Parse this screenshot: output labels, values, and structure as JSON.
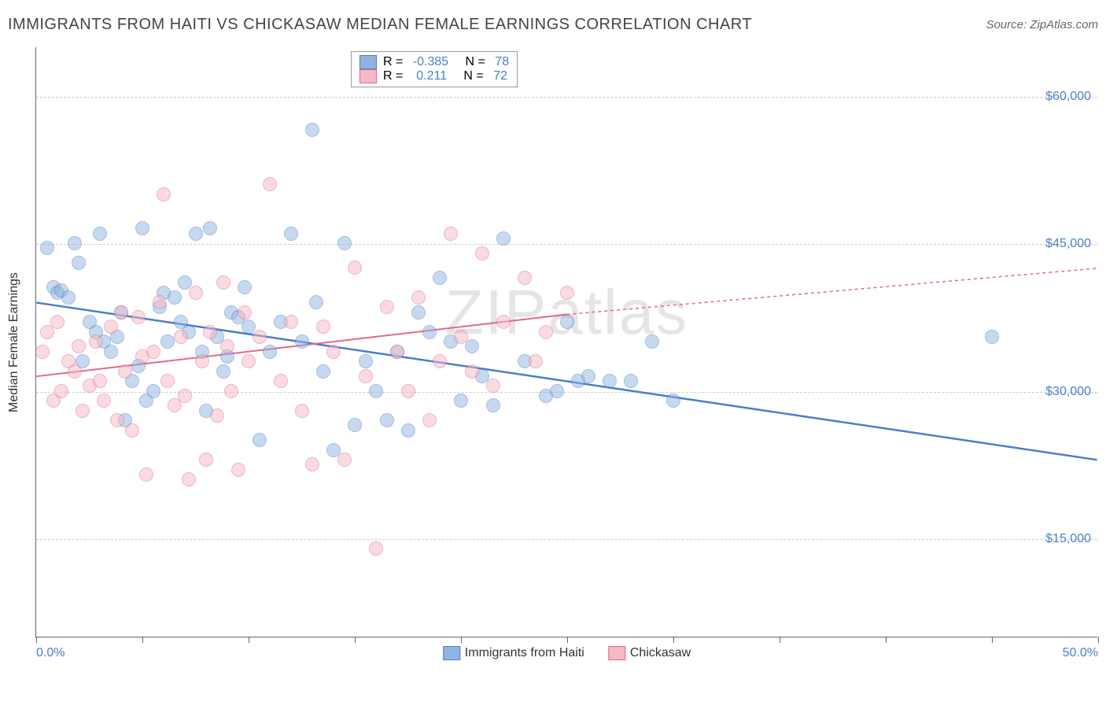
{
  "title": "IMMIGRANTS FROM HAITI VS CHICKASAW MEDIAN FEMALE EARNINGS CORRELATION CHART",
  "source": "Source: ZipAtlas.com",
  "watermark": "ZIPatlas",
  "yaxis_label": "Median Female Earnings",
  "chart": {
    "type": "scatter",
    "xlim": [
      0,
      50
    ],
    "ylim": [
      5000,
      65000
    ],
    "x_ticks": [
      0,
      5,
      10,
      15,
      20,
      25,
      30,
      35,
      40,
      45,
      50
    ],
    "x_tick_labels": {
      "0": "0.0%",
      "50": "50.0%"
    },
    "y_gridlines": [
      15000,
      30000,
      45000,
      60000
    ],
    "y_tick_labels": {
      "15000": "$15,000",
      "30000": "$30,000",
      "45000": "$45,000",
      "60000": "$60,000"
    },
    "grid_color": "#cccccc",
    "background_color": "#ffffff",
    "marker_radius": 9,
    "marker_opacity": 0.5,
    "series": [
      {
        "name": "Immigrants from Haiti",
        "fill_color": "#8fb4e0",
        "stroke_color": "#4a7ec9",
        "R": "-0.385",
        "N": "78",
        "trend": {
          "x1": 0,
          "y1": 39000,
          "x2": 50,
          "y2": 23000,
          "width": 2.5
        },
        "points": [
          [
            0.5,
            44500
          ],
          [
            0.8,
            40500
          ],
          [
            1,
            40000
          ],
          [
            1.2,
            40200
          ],
          [
            1.5,
            39500
          ],
          [
            1.8,
            45000
          ],
          [
            2,
            43000
          ],
          [
            2.2,
            33000
          ],
          [
            2.5,
            37000
          ],
          [
            2.8,
            36000
          ],
          [
            3,
            46000
          ],
          [
            3.2,
            35000
          ],
          [
            3.5,
            34000
          ],
          [
            3.8,
            35500
          ],
          [
            4,
            38000
          ],
          [
            4.2,
            27000
          ],
          [
            4.5,
            31000
          ],
          [
            4.8,
            32500
          ],
          [
            5,
            46500
          ],
          [
            5.2,
            29000
          ],
          [
            5.5,
            30000
          ],
          [
            5.8,
            38500
          ],
          [
            6,
            40000
          ],
          [
            6.2,
            35000
          ],
          [
            6.5,
            39500
          ],
          [
            6.8,
            37000
          ],
          [
            7,
            41000
          ],
          [
            7.2,
            36000
          ],
          [
            7.5,
            46000
          ],
          [
            7.8,
            34000
          ],
          [
            8,
            28000
          ],
          [
            8.2,
            46500
          ],
          [
            8.5,
            35500
          ],
          [
            8.8,
            32000
          ],
          [
            9,
            33500
          ],
          [
            9.2,
            38000
          ],
          [
            9.5,
            37500
          ],
          [
            9.8,
            40500
          ],
          [
            10,
            36500
          ],
          [
            10.5,
            25000
          ],
          [
            11,
            34000
          ],
          [
            11.5,
            37000
          ],
          [
            12,
            46000
          ],
          [
            12.5,
            35000
          ],
          [
            13,
            56500
          ],
          [
            13.2,
            39000
          ],
          [
            13.5,
            32000
          ],
          [
            14,
            24000
          ],
          [
            14.5,
            45000
          ],
          [
            15,
            26500
          ],
          [
            15.5,
            33000
          ],
          [
            16,
            30000
          ],
          [
            16.5,
            27000
          ],
          [
            17,
            34000
          ],
          [
            17.5,
            26000
          ],
          [
            18,
            38000
          ],
          [
            18.5,
            36000
          ],
          [
            19,
            41500
          ],
          [
            19.5,
            35000
          ],
          [
            20,
            29000
          ],
          [
            20.5,
            34500
          ],
          [
            21,
            31500
          ],
          [
            21.5,
            28500
          ],
          [
            22,
            45500
          ],
          [
            23,
            33000
          ],
          [
            24,
            29500
          ],
          [
            24.5,
            30000
          ],
          [
            25,
            37000
          ],
          [
            25.5,
            31000
          ],
          [
            26,
            31500
          ],
          [
            27,
            31000
          ],
          [
            28,
            31000
          ],
          [
            29,
            35000
          ],
          [
            30,
            29000
          ],
          [
            45,
            35500
          ]
        ]
      },
      {
        "name": "Chickasaw",
        "fill_color": "#f5b8c5",
        "stroke_color": "#e06a8a",
        "R": "0.211",
        "N": "72",
        "trend": {
          "x1": 0,
          "y1": 31500,
          "x2": 25,
          "y2": 37800,
          "dash_to_x": 50,
          "dash_to_y": 42500,
          "width": 2
        },
        "points": [
          [
            0.3,
            34000
          ],
          [
            0.5,
            36000
          ],
          [
            0.8,
            29000
          ],
          [
            1,
            37000
          ],
          [
            1.2,
            30000
          ],
          [
            1.5,
            33000
          ],
          [
            1.8,
            32000
          ],
          [
            2,
            34500
          ],
          [
            2.2,
            28000
          ],
          [
            2.5,
            30500
          ],
          [
            2.8,
            35000
          ],
          [
            3,
            31000
          ],
          [
            3.2,
            29000
          ],
          [
            3.5,
            36500
          ],
          [
            3.8,
            27000
          ],
          [
            4,
            38000
          ],
          [
            4.2,
            32000
          ],
          [
            4.5,
            26000
          ],
          [
            4.8,
            37500
          ],
          [
            5,
            33500
          ],
          [
            5.2,
            21500
          ],
          [
            5.5,
            34000
          ],
          [
            5.8,
            39000
          ],
          [
            6,
            50000
          ],
          [
            6.2,
            31000
          ],
          [
            6.5,
            28500
          ],
          [
            6.8,
            35500
          ],
          [
            7,
            29500
          ],
          [
            7.2,
            21000
          ],
          [
            7.5,
            40000
          ],
          [
            7.8,
            33000
          ],
          [
            8,
            23000
          ],
          [
            8.2,
            36000
          ],
          [
            8.5,
            27500
          ],
          [
            8.8,
            41000
          ],
          [
            9,
            34500
          ],
          [
            9.2,
            30000
          ],
          [
            9.5,
            22000
          ],
          [
            9.8,
            38000
          ],
          [
            10,
            33000
          ],
          [
            10.5,
            35500
          ],
          [
            11,
            51000
          ],
          [
            11.5,
            31000
          ],
          [
            12,
            37000
          ],
          [
            12.5,
            28000
          ],
          [
            13,
            22500
          ],
          [
            13.5,
            36500
          ],
          [
            14,
            34000
          ],
          [
            14.5,
            23000
          ],
          [
            15,
            42500
          ],
          [
            15.5,
            31500
          ],
          [
            16,
            14000
          ],
          [
            16.5,
            38500
          ],
          [
            17,
            34000
          ],
          [
            17.5,
            30000
          ],
          [
            18,
            39500
          ],
          [
            18.5,
            27000
          ],
          [
            19,
            33000
          ],
          [
            19.5,
            46000
          ],
          [
            20,
            35500
          ],
          [
            20.5,
            32000
          ],
          [
            21,
            44000
          ],
          [
            21.5,
            30500
          ],
          [
            22,
            37000
          ],
          [
            23,
            41500
          ],
          [
            23.5,
            33000
          ],
          [
            24,
            36000
          ],
          [
            25,
            40000
          ]
        ]
      }
    ]
  },
  "legend_box": {
    "rows": [
      {
        "swatch_fill": "#8fb4e0",
        "swatch_stroke": "#4a7ec9",
        "r_label": "R = ",
        "r_val": "-0.385",
        "n_label": "   N = ",
        "n_val": "78"
      },
      {
        "swatch_fill": "#f5b8c5",
        "swatch_stroke": "#e06a8a",
        "r_label": "R = ",
        "r_val": " 0.211",
        "n_label": "   N = ",
        "n_val": "72"
      }
    ]
  },
  "bottom_legend": [
    {
      "swatch_fill": "#8fb4e0",
      "swatch_stroke": "#4a7ec9",
      "label": "Immigrants from Haiti"
    },
    {
      "swatch_fill": "#f5b8c5",
      "swatch_stroke": "#e06a8a",
      "label": "Chickasaw"
    }
  ]
}
